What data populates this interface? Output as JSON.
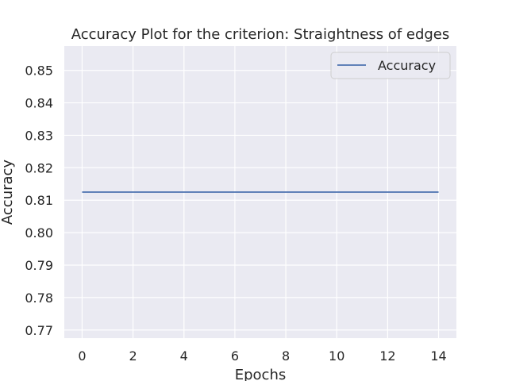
{
  "chart_data": {
    "type": "line",
    "title": "Accuracy Plot for the criterion: Straightness of edges",
    "xlabel": "Epochs",
    "ylabel": "Accuracy",
    "x": [
      0,
      1,
      2,
      3,
      4,
      5,
      6,
      7,
      8,
      9,
      10,
      11,
      12,
      13,
      14
    ],
    "series": [
      {
        "name": "Accuracy",
        "values": [
          0.8125,
          0.8125,
          0.8125,
          0.8125,
          0.8125,
          0.8125,
          0.8125,
          0.8125,
          0.8125,
          0.8125,
          0.8125,
          0.8125,
          0.8125,
          0.8125,
          0.8125
        ],
        "color": "#4c72b0"
      }
    ],
    "xlim": [
      -0.7,
      14.7
    ],
    "ylim": [
      0.7675,
      0.8575
    ],
    "xticks": [
      0,
      2,
      4,
      6,
      8,
      10,
      12,
      14
    ],
    "xtick_labels": [
      "0",
      "2",
      "4",
      "6",
      "8",
      "10",
      "12",
      "14"
    ],
    "yticks": [
      0.77,
      0.78,
      0.79,
      0.8,
      0.81,
      0.82,
      0.83,
      0.84,
      0.85
    ],
    "ytick_labels": [
      "0.77",
      "0.78",
      "0.79",
      "0.80",
      "0.81",
      "0.82",
      "0.83",
      "0.84",
      "0.85"
    ],
    "grid": true,
    "legend_position": "top-right",
    "background_color": "#eaeaf2",
    "grid_color": "#ffffff"
  }
}
